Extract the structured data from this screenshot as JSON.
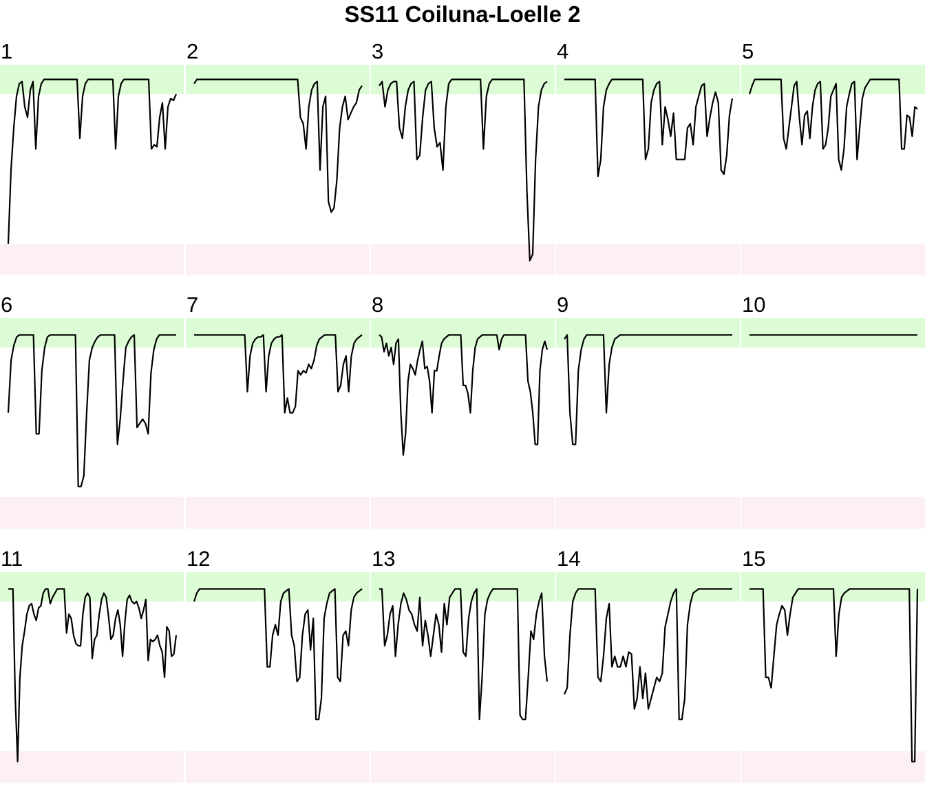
{
  "chart_data": {
    "type": "line",
    "title": "SS11 Coiluna-Loelle 2",
    "layout": {
      "columns": 5,
      "rows": 3
    },
    "ylim": [
      0,
      1
    ],
    "bands": [
      {
        "name": "upper",
        "range": [
          0.86,
          1.0
        ],
        "color": "#dcfcd6"
      },
      {
        "name": "lower",
        "range": [
          0.0,
          0.15
        ],
        "color": "#fdf0f2"
      }
    ],
    "line_color": "#000000",
    "panels": [
      {
        "label": "1",
        "values": [
          0.15,
          0.5,
          0.7,
          0.85,
          0.91,
          0.92,
          0.8,
          0.75,
          0.88,
          0.92,
          0.6,
          0.85,
          0.91,
          0.93,
          0.93,
          0.93,
          0.93,
          0.93,
          0.93,
          0.93,
          0.93,
          0.93,
          0.93,
          0.93,
          0.93,
          0.93,
          0.65,
          0.85,
          0.91,
          0.93,
          0.93,
          0.93,
          0.93,
          0.93,
          0.93,
          0.93,
          0.93,
          0.93,
          0.93,
          0.6,
          0.85,
          0.91,
          0.93,
          0.93,
          0.93,
          0.93,
          0.93,
          0.93,
          0.93,
          0.93,
          0.93,
          0.93,
          0.6,
          0.62,
          0.61,
          0.75,
          0.82,
          0.6,
          0.8,
          0.84,
          0.83,
          0.86
        ]
      },
      {
        "label": "2",
        "values": [
          0.91,
          0.93,
          0.93,
          0.93,
          0.93,
          0.93,
          0.93,
          0.93,
          0.93,
          0.93,
          0.93,
          0.93,
          0.93,
          0.93,
          0.93,
          0.93,
          0.93,
          0.93,
          0.93,
          0.93,
          0.93,
          0.93,
          0.93,
          0.93,
          0.93,
          0.93,
          0.93,
          0.93,
          0.93,
          0.93,
          0.93,
          0.93,
          0.93,
          0.93,
          0.93,
          0.93,
          0.93,
          0.93,
          0.75,
          0.72,
          0.6,
          0.8,
          0.88,
          0.91,
          0.92,
          0.5,
          0.8,
          0.85,
          0.35,
          0.3,
          0.32,
          0.45,
          0.7,
          0.8,
          0.85,
          0.74,
          0.77,
          0.8,
          0.82,
          0.88,
          0.9
        ]
      },
      {
        "label": "3",
        "values": [
          0.9,
          0.92,
          0.8,
          0.88,
          0.91,
          0.92,
          0.92,
          0.7,
          0.65,
          0.8,
          0.88,
          0.91,
          0.92,
          0.55,
          0.57,
          0.75,
          0.88,
          0.91,
          0.92,
          0.7,
          0.61,
          0.63,
          0.5,
          0.8,
          0.91,
          0.93,
          0.93,
          0.93,
          0.93,
          0.93,
          0.93,
          0.93,
          0.93,
          0.93,
          0.93,
          0.93,
          0.6,
          0.85,
          0.91,
          0.93,
          0.93,
          0.93,
          0.93,
          0.93,
          0.93,
          0.93,
          0.93,
          0.93,
          0.93,
          0.93,
          0.93,
          0.4,
          0.07,
          0.1,
          0.55,
          0.8,
          0.88,
          0.91,
          0.92
        ]
      },
      {
        "label": "4",
        "values": [
          0.93,
          0.93,
          0.93,
          0.93,
          0.93,
          0.93,
          0.93,
          0.93,
          0.93,
          0.93,
          0.93,
          0.93,
          0.47,
          0.55,
          0.8,
          0.88,
          0.91,
          0.93,
          0.93,
          0.93,
          0.93,
          0.93,
          0.93,
          0.93,
          0.93,
          0.93,
          0.93,
          0.93,
          0.93,
          0.55,
          0.6,
          0.82,
          0.88,
          0.91,
          0.92,
          0.62,
          0.8,
          0.74,
          0.66,
          0.77,
          0.55,
          0.55,
          0.55,
          0.55,
          0.7,
          0.72,
          0.62,
          0.8,
          0.85,
          0.9,
          0.91,
          0.66,
          0.75,
          0.82,
          0.87,
          0.82,
          0.5,
          0.48,
          0.57,
          0.76,
          0.84
        ]
      },
      {
        "label": "5",
        "values": [
          0.86,
          0.9,
          0.93,
          0.93,
          0.93,
          0.93,
          0.93,
          0.93,
          0.93,
          0.93,
          0.93,
          0.93,
          0.93,
          0.65,
          0.6,
          0.7,
          0.8,
          0.9,
          0.92,
          0.75,
          0.62,
          0.76,
          0.78,
          0.65,
          0.8,
          0.88,
          0.91,
          0.92,
          0.6,
          0.62,
          0.7,
          0.85,
          0.88,
          0.91,
          0.55,
          0.5,
          0.6,
          0.8,
          0.86,
          0.91,
          0.92,
          0.55,
          0.7,
          0.84,
          0.89,
          0.91,
          0.93,
          0.93,
          0.93,
          0.93,
          0.93,
          0.93,
          0.93,
          0.93,
          0.93,
          0.93,
          0.93,
          0.93,
          0.6,
          0.6,
          0.76,
          0.75,
          0.66,
          0.8,
          0.79
        ]
      },
      {
        "label": "6",
        "values": [
          0.55,
          0.8,
          0.87,
          0.91,
          0.92,
          0.92,
          0.92,
          0.92,
          0.92,
          0.92,
          0.45,
          0.45,
          0.75,
          0.86,
          0.91,
          0.92,
          0.92,
          0.92,
          0.92,
          0.92,
          0.92,
          0.92,
          0.92,
          0.92,
          0.92,
          0.2,
          0.2,
          0.25,
          0.55,
          0.8,
          0.86,
          0.89,
          0.91,
          0.92,
          0.92,
          0.92,
          0.92,
          0.92,
          0.92,
          0.4,
          0.52,
          0.7,
          0.86,
          0.89,
          0.91,
          0.92,
          0.48,
          0.5,
          0.52,
          0.5,
          0.45,
          0.74,
          0.85,
          0.9,
          0.92,
          0.92,
          0.92,
          0.92,
          0.92,
          0.92,
          0.92
        ]
      },
      {
        "label": "7",
        "values": [
          0.92,
          0.92,
          0.92,
          0.92,
          0.92,
          0.92,
          0.92,
          0.92,
          0.92,
          0.92,
          0.92,
          0.92,
          0.92,
          0.92,
          0.92,
          0.92,
          0.92,
          0.92,
          0.92,
          0.92,
          0.65,
          0.82,
          0.88,
          0.9,
          0.91,
          0.91,
          0.92,
          0.65,
          0.82,
          0.88,
          0.9,
          0.91,
          0.91,
          0.92,
          0.55,
          0.62,
          0.55,
          0.55,
          0.58,
          0.75,
          0.73,
          0.75,
          0.74,
          0.78,
          0.76,
          0.8,
          0.87,
          0.9,
          0.91,
          0.92,
          0.92,
          0.92,
          0.92,
          0.92,
          0.65,
          0.68,
          0.78,
          0.82,
          0.65,
          0.82,
          0.88,
          0.9,
          0.91,
          0.92
        ]
      },
      {
        "label": "8",
        "values": [
          0.92,
          0.91,
          0.84,
          0.88,
          0.82,
          0.86,
          0.78,
          0.88,
          0.9,
          0.55,
          0.35,
          0.45,
          0.7,
          0.78,
          0.76,
          0.73,
          0.8,
          0.85,
          0.89,
          0.76,
          0.77,
          0.7,
          0.55,
          0.75,
          0.75,
          0.82,
          0.88,
          0.9,
          0.91,
          0.92,
          0.92,
          0.92,
          0.92,
          0.92,
          0.92,
          0.68,
          0.68,
          0.64,
          0.55,
          0.75,
          0.86,
          0.9,
          0.91,
          0.92,
          0.92,
          0.92,
          0.92,
          0.92,
          0.92,
          0.92,
          0.85,
          0.9,
          0.92,
          0.92,
          0.92,
          0.92,
          0.92,
          0.92,
          0.92,
          0.92,
          0.92,
          0.92,
          0.7,
          0.65,
          0.55,
          0.4,
          0.4,
          0.75,
          0.85,
          0.89,
          0.85
        ]
      },
      {
        "label": "9",
        "values": [
          0.9,
          0.92,
          0.55,
          0.4,
          0.4,
          0.75,
          0.85,
          0.9,
          0.92,
          0.92,
          0.92,
          0.92,
          0.92,
          0.92,
          0.92,
          0.55,
          0.78,
          0.86,
          0.9,
          0.91,
          0.92,
          0.92,
          0.92,
          0.92,
          0.92,
          0.92,
          0.92,
          0.92,
          0.92,
          0.92,
          0.92,
          0.92,
          0.92,
          0.92,
          0.92,
          0.92,
          0.92,
          0.92,
          0.92,
          0.92,
          0.92,
          0.92,
          0.92,
          0.92,
          0.92,
          0.92,
          0.92,
          0.92,
          0.92,
          0.92,
          0.92,
          0.92,
          0.92,
          0.92,
          0.92,
          0.92,
          0.92,
          0.92,
          0.92,
          0.92,
          0.92
        ]
      },
      {
        "label": "10",
        "values": [
          0.92,
          0.92,
          0.92,
          0.92,
          0.92,
          0.92,
          0.92,
          0.92,
          0.92,
          0.92,
          0.92,
          0.92,
          0.92,
          0.92,
          0.92,
          0.92,
          0.92,
          0.92,
          0.92,
          0.92,
          0.92,
          0.92,
          0.92,
          0.92,
          0.92,
          0.92,
          0.92,
          0.92,
          0.92,
          0.92,
          0.92,
          0.92,
          0.92,
          0.92,
          0.92,
          0.92,
          0.92,
          0.92,
          0.92,
          0.92,
          0.92,
          0.92,
          0.92,
          0.92,
          0.92,
          0.92,
          0.92,
          0.92,
          0.92,
          0.92,
          0.92,
          0.92,
          0.92,
          0.92,
          0.92,
          0.92,
          0.92,
          0.92,
          0.92,
          0.92,
          0.92
        ]
      },
      {
        "label": "11",
        "values": [
          0.92,
          0.92,
          0.92,
          0.4,
          0.1,
          0.5,
          0.65,
          0.72,
          0.8,
          0.84,
          0.85,
          0.8,
          0.77,
          0.83,
          0.84,
          0.9,
          0.92,
          0.92,
          0.85,
          0.88,
          0.9,
          0.92,
          0.92,
          0.92,
          0.92,
          0.71,
          0.8,
          0.78,
          0.7,
          0.66,
          0.65,
          0.65,
          0.8,
          0.88,
          0.9,
          0.88,
          0.59,
          0.68,
          0.7,
          0.8,
          0.87,
          0.9,
          0.88,
          0.79,
          0.68,
          0.7,
          0.78,
          0.82,
          0.75,
          0.6,
          0.76,
          0.87,
          0.89,
          0.86,
          0.85,
          0.86,
          0.83,
          0.78,
          0.82,
          0.87,
          0.58,
          0.68,
          0.67,
          0.68,
          0.7,
          0.65,
          0.62,
          0.5,
          0.74,
          0.72,
          0.6,
          0.61,
          0.7
        ]
      },
      {
        "label": "12",
        "values": [
          0.86,
          0.9,
          0.92,
          0.92,
          0.92,
          0.92,
          0.92,
          0.92,
          0.92,
          0.92,
          0.92,
          0.92,
          0.92,
          0.92,
          0.92,
          0.92,
          0.92,
          0.92,
          0.92,
          0.92,
          0.92,
          0.92,
          0.92,
          0.92,
          0.92,
          0.92,
          0.92,
          0.55,
          0.55,
          0.7,
          0.75,
          0.7,
          0.86,
          0.9,
          0.91,
          0.92,
          0.7,
          0.65,
          0.48,
          0.5,
          0.7,
          0.8,
          0.82,
          0.63,
          0.78,
          0.3,
          0.3,
          0.4,
          0.78,
          0.85,
          0.9,
          0.91,
          0.92,
          0.5,
          0.48,
          0.7,
          0.72,
          0.65,
          0.82,
          0.88,
          0.9,
          0.91,
          0.92
        ]
      },
      {
        "label": "13",
        "values": [
          0.92,
          0.92,
          0.65,
          0.7,
          0.8,
          0.84,
          0.6,
          0.75,
          0.85,
          0.9,
          0.87,
          0.82,
          0.8,
          0.75,
          0.72,
          0.88,
          0.65,
          0.77,
          0.7,
          0.6,
          0.7,
          0.8,
          0.75,
          0.62,
          0.85,
          0.75,
          0.88,
          0.9,
          0.92,
          0.92,
          0.92,
          0.62,
          0.6,
          0.78,
          0.86,
          0.9,
          0.92,
          0.3,
          0.5,
          0.8,
          0.87,
          0.9,
          0.92,
          0.92,
          0.92,
          0.92,
          0.92,
          0.92,
          0.92,
          0.92,
          0.92,
          0.92,
          0.32,
          0.3,
          0.3,
          0.5,
          0.72,
          0.68,
          0.8,
          0.86,
          0.9,
          0.6,
          0.48
        ]
      },
      {
        "label": "14",
        "values": [
          0.42,
          0.45,
          0.7,
          0.86,
          0.9,
          0.92,
          0.92,
          0.92,
          0.92,
          0.92,
          0.92,
          0.92,
          0.5,
          0.48,
          0.6,
          0.78,
          0.85,
          0.55,
          0.6,
          0.55,
          0.55,
          0.6,
          0.55,
          0.62,
          0.61,
          0.35,
          0.4,
          0.55,
          0.4,
          0.52,
          0.35,
          0.4,
          0.45,
          0.5,
          0.48,
          0.52,
          0.74,
          0.8,
          0.86,
          0.9,
          0.92,
          0.3,
          0.3,
          0.4,
          0.75,
          0.85,
          0.9,
          0.91,
          0.92,
          0.92,
          0.92,
          0.92,
          0.92,
          0.92,
          0.92,
          0.92,
          0.92,
          0.92,
          0.92,
          0.92,
          0.92
        ]
      },
      {
        "label": "15",
        "values": [
          0.92,
          0.92,
          0.92,
          0.92,
          0.92,
          0.92,
          0.5,
          0.5,
          0.45,
          0.6,
          0.75,
          0.8,
          0.84,
          0.82,
          0.7,
          0.8,
          0.88,
          0.9,
          0.92,
          0.92,
          0.92,
          0.92,
          0.92,
          0.92,
          0.92,
          0.92,
          0.92,
          0.92,
          0.92,
          0.92,
          0.92,
          0.92,
          0.6,
          0.8,
          0.88,
          0.9,
          0.91,
          0.92,
          0.92,
          0.92,
          0.92,
          0.92,
          0.92,
          0.92,
          0.92,
          0.92,
          0.92,
          0.92,
          0.92,
          0.92,
          0.92,
          0.92,
          0.92,
          0.92,
          0.92,
          0.92,
          0.92,
          0.92,
          0.92,
          0.92,
          0.1,
          0.1,
          0.92
        ]
      }
    ]
  }
}
